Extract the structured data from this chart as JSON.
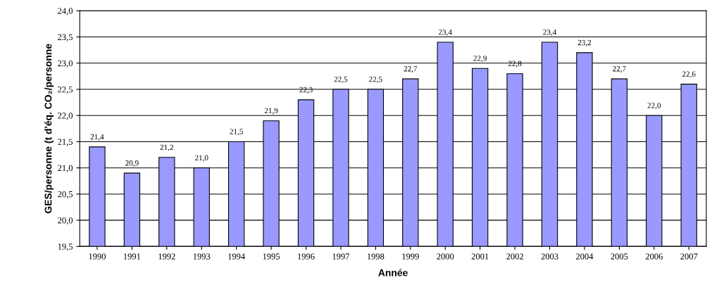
{
  "chart_data": {
    "type": "bar",
    "xlabel": "Année",
    "ylabel": "GES/personne (t d'éq. CO₂/personne",
    "categories": [
      "1990",
      "1991",
      "1992",
      "1993",
      "1994",
      "1995",
      "1996",
      "1997",
      "1998",
      "1999",
      "2000",
      "2001",
      "2002",
      "2003",
      "2004",
      "2005",
      "2006",
      "2007"
    ],
    "values": [
      21.4,
      20.9,
      21.2,
      21.0,
      21.5,
      21.9,
      22.3,
      22.5,
      22.5,
      22.7,
      23.4,
      22.9,
      22.8,
      23.4,
      23.2,
      22.7,
      22.0,
      22.6
    ],
    "value_labels": [
      "21,4",
      "20,9",
      "21,2",
      "21,0",
      "21,5",
      "21,9",
      "22,3",
      "22,5",
      "22,5",
      "22,7",
      "23,4",
      "22,9",
      "22,8",
      "23,4",
      "23,2",
      "22,7",
      "22,0",
      "22,6"
    ],
    "color": "#9999ff",
    "ylim": [
      19.5,
      24.0
    ],
    "yticks": [
      {
        "value": 19.5,
        "label": "19,5"
      },
      {
        "value": 20.0,
        "label": "20,0"
      },
      {
        "value": 20.5,
        "label": "20,5"
      },
      {
        "value": 21.0,
        "label": "21,0"
      },
      {
        "value": 21.5,
        "label": "21,5"
      },
      {
        "value": 22.0,
        "label": "22,0"
      },
      {
        "value": 22.5,
        "label": "22,5"
      },
      {
        "value": 23.0,
        "label": "23,0"
      },
      {
        "value": 23.5,
        "label": "23,5"
      },
      {
        "value": 24.0,
        "label": "24,0"
      }
    ],
    "grid": "y",
    "legend": false
  }
}
